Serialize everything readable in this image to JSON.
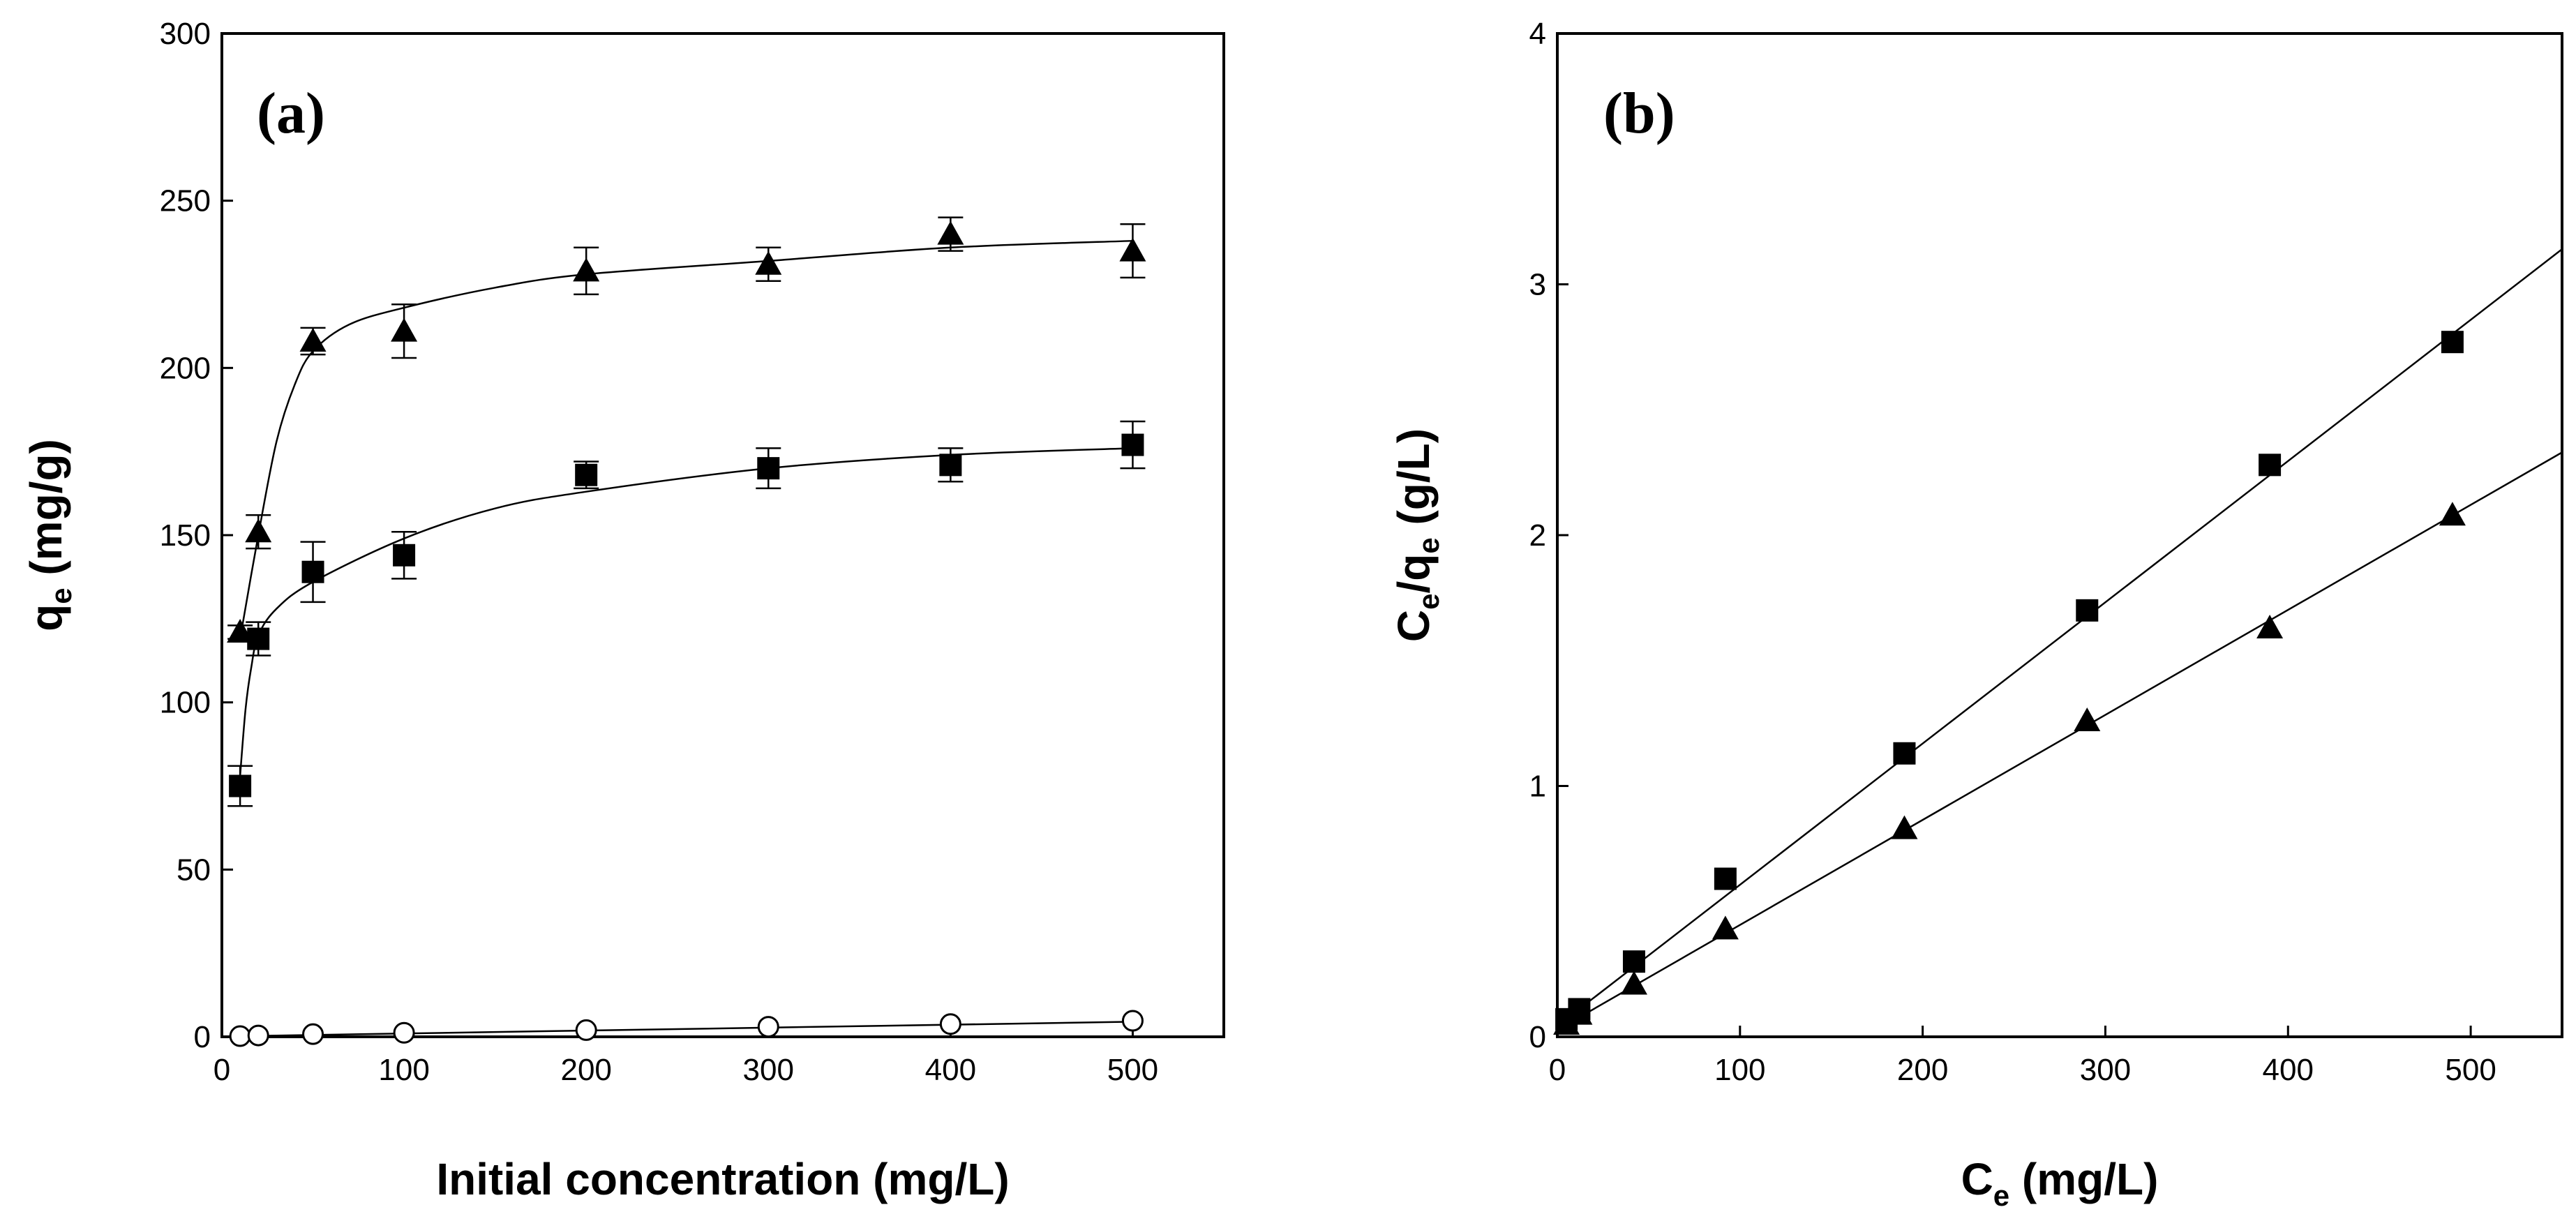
{
  "chart_data": [
    {
      "type": "scatter",
      "panel_label": "(a)",
      "xlabel": "Initial concentration (mg/L)",
      "ylabel": {
        "main": "q",
        "sub": "e",
        "rest": " (mg/g)"
      },
      "xlim": [
        0,
        550
      ],
      "ylim": [
        0,
        300
      ],
      "xticks": [
        0,
        100,
        200,
        300,
        400,
        500
      ],
      "yticks": [
        0,
        50,
        100,
        150,
        200,
        250,
        300
      ],
      "grid": false,
      "legend": "none",
      "series": [
        {
          "marker": "triangle-filled",
          "x": [
            10,
            20,
            50,
            100,
            200,
            300,
            400,
            500
          ],
          "y": [
            121,
            151,
            208,
            211,
            229,
            231,
            240,
            235
          ],
          "err": [
            2,
            5,
            4,
            8,
            7,
            5,
            5,
            8
          ],
          "fit": {
            "x": [
              10,
              20,
              30,
              40,
              50,
              70,
              100,
              150,
              200,
              300,
              400,
              500
            ],
            "y": [
              119,
              150,
              178,
              195,
              205,
              213,
              218,
              224,
              228,
              232,
              236,
              238
            ]
          }
        },
        {
          "marker": "square-filled",
          "x": [
            10,
            20,
            50,
            100,
            200,
            300,
            400,
            500
          ],
          "y": [
            75,
            119,
            139,
            144,
            168,
            170,
            171,
            177
          ],
          "err": [
            6,
            5,
            9,
            7,
            4,
            6,
            5,
            7
          ],
          "fit": {
            "x": [
              10,
              13,
              16,
              20,
              30,
              50,
              100,
              150,
              200,
              300,
              400,
              500
            ],
            "y": [
              78,
              98,
              110,
              120,
              128,
              136,
              149,
              158,
              163,
              170,
              174,
              176
            ]
          }
        },
        {
          "marker": "circle-open",
          "x": [
            10,
            20,
            50,
            100,
            200,
            300,
            400,
            500
          ],
          "y": [
            0.2,
            0.4,
            0.8,
            1.2,
            2.0,
            3.0,
            3.8,
            4.8
          ],
          "err": [
            0,
            0,
            0,
            0,
            0,
            0,
            0,
            0
          ],
          "fit": {
            "x": [
              10,
              500
            ],
            "y": [
              0.2,
              4.5
            ]
          }
        }
      ]
    },
    {
      "type": "scatter",
      "panel_label": "(b)",
      "xlabel": {
        "main": "C",
        "sub": "e",
        "rest": " (mg/L)"
      },
      "ylabel": {
        "p1": "C",
        "s1": "e",
        "p2": "/q",
        "s2": "e",
        "p3": " (g/L)"
      },
      "xlim": [
        0,
        550
      ],
      "ylim": [
        0,
        4
      ],
      "xticks": [
        0,
        100,
        200,
        300,
        400,
        500
      ],
      "yticks": [
        0,
        1,
        2,
        3,
        4
      ],
      "grid": false,
      "legend": "none",
      "series": [
        {
          "marker": "square-filled",
          "x": [
            5,
            12,
            42,
            92,
            190,
            290,
            390,
            490
          ],
          "y": [
            0.07,
            0.11,
            0.3,
            0.63,
            1.13,
            1.7,
            2.28,
            2.77
          ],
          "fit": {
            "x": [
              3,
              550
            ],
            "y": [
              0.06,
              3.14
            ]
          }
        },
        {
          "marker": "triangle-filled",
          "x": [
            5,
            12,
            42,
            92,
            190,
            290,
            390,
            490
          ],
          "y": [
            0.05,
            0.09,
            0.21,
            0.43,
            0.83,
            1.26,
            1.63,
            2.08
          ],
          "fit": {
            "x": [
              3,
              550
            ],
            "y": [
              0.04,
              2.33
            ]
          }
        }
      ]
    }
  ]
}
